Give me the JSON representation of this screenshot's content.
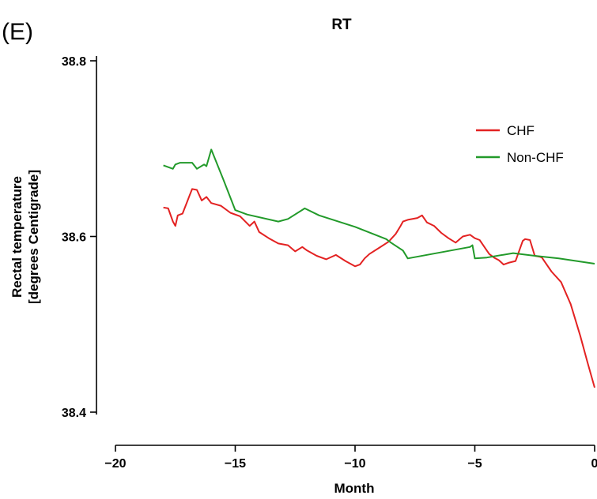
{
  "panel_label": "(E)",
  "chart_data": {
    "type": "line",
    "title": "RT",
    "xlabel": "Month",
    "ylabel_lines": [
      "Rectal temperature",
      "[degrees Centigrade]"
    ],
    "xlim": [
      -20,
      0
    ],
    "ylim": [
      38.4,
      38.8
    ],
    "xticks": [
      -20,
      -15,
      -10,
      -5,
      0
    ],
    "xtick_labels": [
      "−20",
      "−15",
      "−10",
      "−5",
      "0"
    ],
    "yticks": [
      38.4,
      38.6,
      38.8
    ],
    "ytick_labels": [
      "38.4",
      "38.6",
      "38.8"
    ],
    "legend_position": "top-right",
    "grid": false,
    "series": [
      {
        "name": "CHF",
        "color": "#e32222",
        "x": [
          -18,
          -17.8,
          -17.6,
          -17.5,
          -17.4,
          -17.2,
          -17.0,
          -16.9,
          -16.8,
          -16.6,
          -16.4,
          -16.2,
          -16.0,
          -15.6,
          -15.2,
          -14.8,
          -14.4,
          -14.2,
          -14.0,
          -13.6,
          -13.2,
          -12.8,
          -12.5,
          -12.2,
          -12.0,
          -11.6,
          -11.2,
          -10.8,
          -10.4,
          -10.0,
          -9.8,
          -9.6,
          -9.4,
          -9.0,
          -8.6,
          -8.3,
          -8.1,
          -8.0,
          -7.8,
          -7.4,
          -7.2,
          -7.0,
          -6.7,
          -6.4,
          -6.1,
          -5.8,
          -5.5,
          -5.2,
          -5.0,
          -4.8,
          -4.6,
          -4.4,
          -4.2,
          -4.0,
          -3.8,
          -3.6,
          -3.3,
          -3.0,
          -2.9,
          -2.7,
          -2.5,
          -2.3,
          -2.2,
          -1.8,
          -1.4,
          -1.0,
          -0.6,
          -0.3,
          0.0
        ],
        "values": [
          38.633,
          38.632,
          38.617,
          38.612,
          38.624,
          38.626,
          38.64,
          38.647,
          38.654,
          38.653,
          38.641,
          38.645,
          38.638,
          38.635,
          38.627,
          38.623,
          38.612,
          38.617,
          38.605,
          38.598,
          38.592,
          38.59,
          38.583,
          38.588,
          38.584,
          38.578,
          38.574,
          38.579,
          38.572,
          38.566,
          38.568,
          38.575,
          38.58,
          38.587,
          38.594,
          38.603,
          38.612,
          38.617,
          38.619,
          38.621,
          38.624,
          38.616,
          38.612,
          38.604,
          38.598,
          38.593,
          38.6,
          38.602,
          38.598,
          38.596,
          38.588,
          38.58,
          38.576,
          38.573,
          38.568,
          38.57,
          38.572,
          38.595,
          38.597,
          38.596,
          38.578,
          38.577,
          38.576,
          38.56,
          38.548,
          38.523,
          38.487,
          38.457,
          38.428
        ]
      },
      {
        "name": "Non-CHF",
        "color": "#229a2a",
        "x": [
          -18,
          -17.6,
          -17.5,
          -17.3,
          -16.8,
          -16.6,
          -16.3,
          -16.2,
          -16.0,
          -15.5,
          -15.0,
          -14.5,
          -13.2,
          -12.8,
          -12.1,
          -11.5,
          -10.0,
          -8.7,
          -8.5,
          -8.0,
          -7.8,
          -5.2,
          -5.1,
          -5.0,
          -4.5,
          -3.4,
          -2.5,
          -1.5,
          -0.5,
          0.0
        ],
        "values": [
          38.681,
          38.677,
          38.682,
          38.684,
          38.684,
          38.677,
          38.682,
          38.68,
          38.699,
          38.665,
          38.63,
          38.625,
          38.617,
          38.62,
          38.632,
          38.624,
          38.611,
          38.597,
          38.593,
          38.584,
          38.575,
          38.588,
          38.59,
          38.575,
          38.576,
          38.581,
          38.578,
          38.575,
          38.571,
          38.569
        ]
      }
    ]
  }
}
